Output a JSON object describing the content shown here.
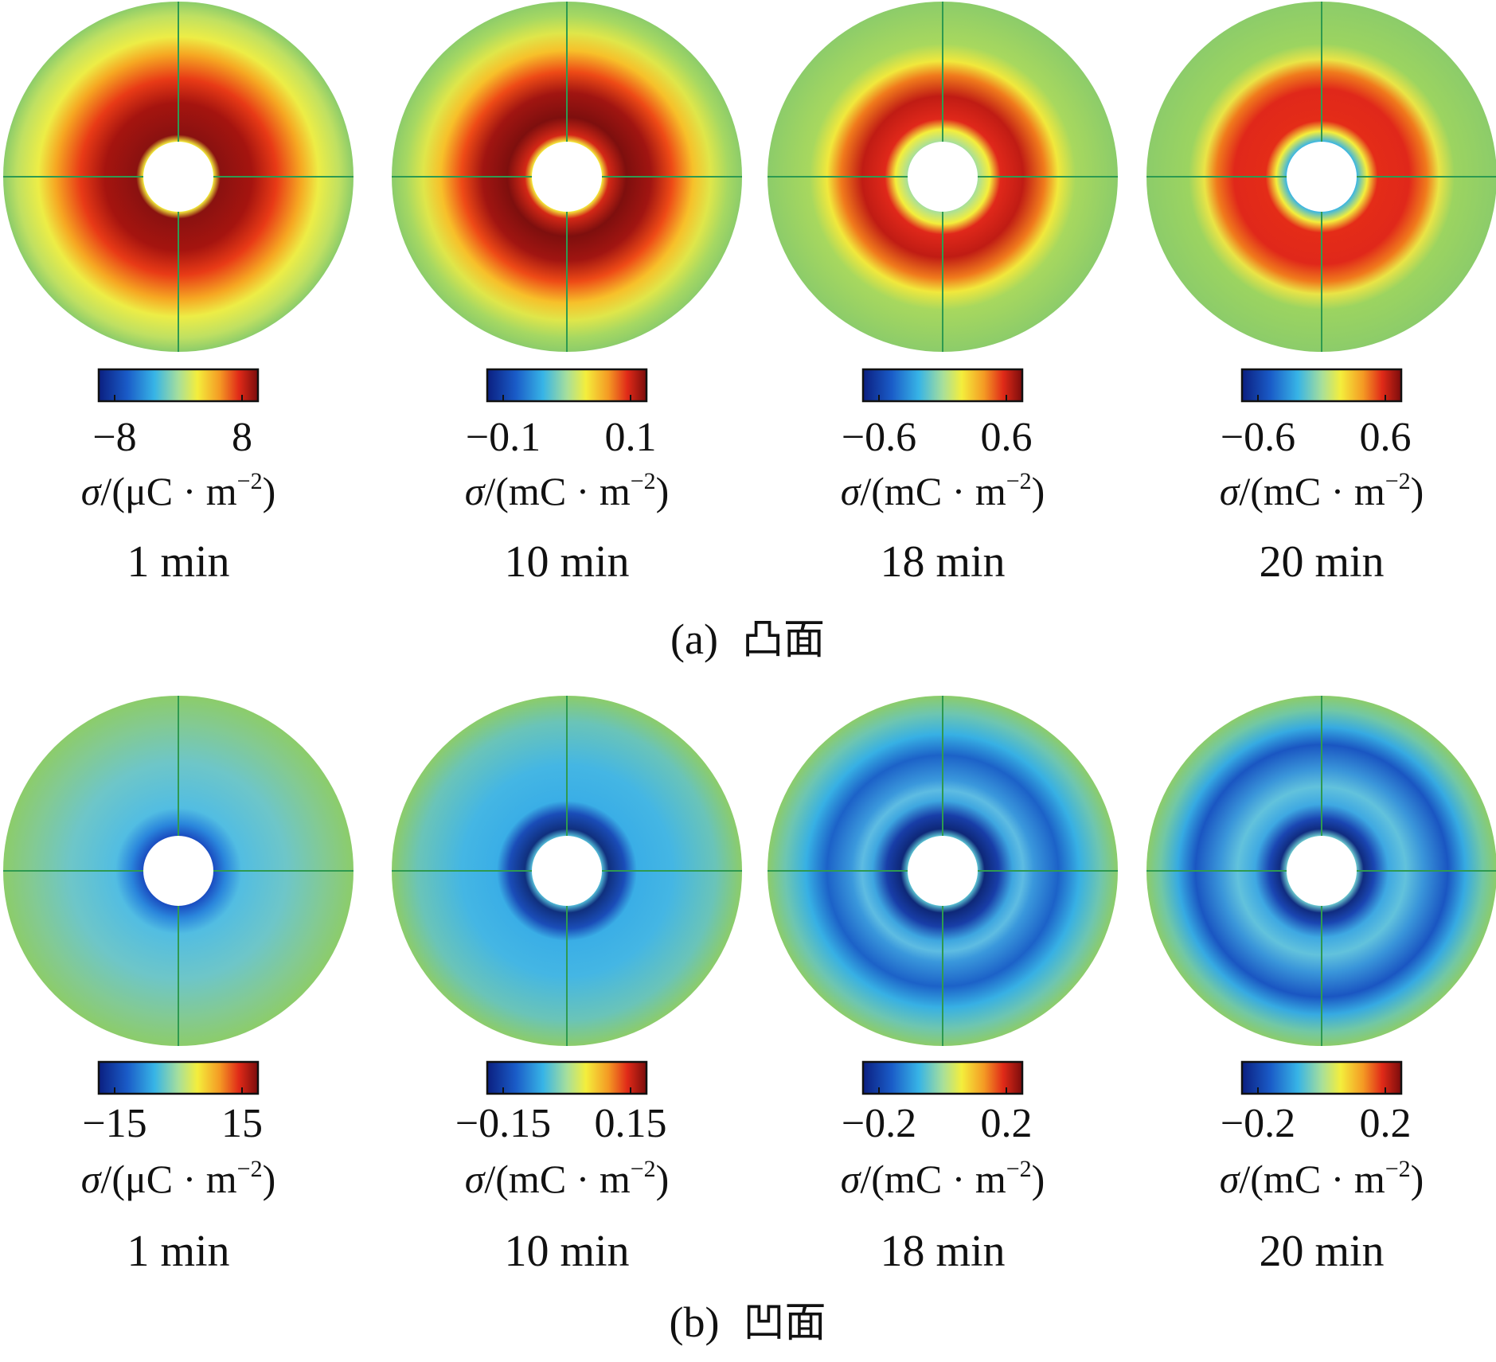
{
  "colors": {
    "outer_rim": "#8ccc6a",
    "hole": "#ffffff",
    "axis_line": "#2e9a50",
    "colormap": [
      "#0b1f80",
      "#1a5cc8",
      "#37b4e6",
      "#a6df9c",
      "#f4ee3c",
      "#f49a24",
      "#e02a18",
      "#7a0c0c"
    ]
  },
  "panels": [
    {
      "label": "(a)",
      "caption": "凸面",
      "plots": [
        {
          "time": "1 min",
          "cbar_min": "−8",
          "cbar_max": "8",
          "unit_prefix": "μC"
        },
        {
          "time": "10 min",
          "cbar_min": "−0.1",
          "cbar_max": "0.1",
          "unit_prefix": "mC"
        },
        {
          "time": "18 min",
          "cbar_min": "−0.6",
          "cbar_max": "0.6",
          "unit_prefix": "mC"
        },
        {
          "time": "20 min",
          "cbar_min": "−0.6",
          "cbar_max": "0.6",
          "unit_prefix": "mC"
        }
      ]
    },
    {
      "label": "(b)",
      "caption": "凹面",
      "plots": [
        {
          "time": "1 min",
          "cbar_min": "−15",
          "cbar_max": "15",
          "unit_prefix": "μC"
        },
        {
          "time": "10 min",
          "cbar_min": "−0.15",
          "cbar_max": "0.15",
          "unit_prefix": "mC"
        },
        {
          "time": "18 min",
          "cbar_min": "−0.2",
          "cbar_max": "0.2",
          "unit_prefix": "mC"
        },
        {
          "time": "20 min",
          "cbar_min": "−0.2",
          "cbar_max": "0.2",
          "unit_prefix": "mC"
        }
      ]
    }
  ],
  "unit_symbol": "σ",
  "unit_suffix": "m",
  "unit_exponent": "−2"
}
